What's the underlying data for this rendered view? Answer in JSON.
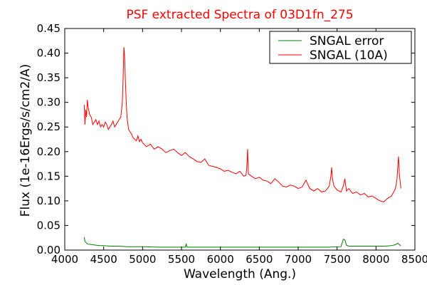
{
  "chart_data": {
    "type": "line",
    "title": "PSF extracted Spectra of 03D1fn_275",
    "xlabel": "Wavelength (Ang.)",
    "ylabel": "Flux (1e-16Ergs/s/cm2/A)",
    "xlim": [
      4000,
      8500
    ],
    "ylim": [
      0.0,
      0.45
    ],
    "xticks": [
      "4000",
      "4500",
      "5000",
      "5500",
      "6000",
      "6500",
      "7000",
      "7500",
      "8000",
      "8500"
    ],
    "yticks": [
      "0.00",
      "0.05",
      "0.10",
      "0.15",
      "0.20",
      "0.25",
      "0.30",
      "0.35",
      "0.40",
      "0.45"
    ],
    "legend_position": "top-right",
    "grid": false,
    "series": [
      {
        "name": "SNGAL error",
        "color": "#008000",
        "x": [
          4250,
          4260,
          4280,
          4300,
          4350,
          4400,
          4450,
          4500,
          4600,
          4700,
          4800,
          4900,
          5000,
          5200,
          5400,
          5550,
          5560,
          5570,
          5600,
          5800,
          6000,
          6200,
          6400,
          6600,
          6800,
          7000,
          7200,
          7400,
          7550,
          7580,
          7600,
          7620,
          7650,
          7700,
          7800,
          7900,
          8000,
          8100,
          8200,
          8250,
          8280,
          8300,
          8320
        ],
        "y": [
          0.026,
          0.018,
          0.014,
          0.012,
          0.011,
          0.01,
          0.009,
          0.009,
          0.008,
          0.008,
          0.007,
          0.007,
          0.007,
          0.006,
          0.006,
          0.006,
          0.013,
          0.006,
          0.006,
          0.006,
          0.006,
          0.006,
          0.006,
          0.006,
          0.006,
          0.006,
          0.006,
          0.006,
          0.007,
          0.022,
          0.021,
          0.01,
          0.008,
          0.008,
          0.008,
          0.008,
          0.008,
          0.008,
          0.009,
          0.011,
          0.014,
          0.011,
          0.009
        ]
      },
      {
        "name": "SNGAL (10A)",
        "color": "#ff0000",
        "x": [
          4250,
          4260,
          4270,
          4280,
          4290,
          4300,
          4320,
          4340,
          4360,
          4380,
          4400,
          4420,
          4440,
          4460,
          4480,
          4500,
          4520,
          4540,
          4560,
          4580,
          4600,
          4620,
          4640,
          4660,
          4680,
          4700,
          4720,
          4740,
          4750,
          4760,
          4770,
          4780,
          4790,
          4800,
          4820,
          4840,
          4860,
          4880,
          4900,
          4920,
          4940,
          4960,
          4980,
          5000,
          5050,
          5100,
          5150,
          5200,
          5250,
          5300,
          5350,
          5400,
          5450,
          5500,
          5550,
          5600,
          5650,
          5700,
          5750,
          5800,
          5850,
          5900,
          5950,
          6000,
          6050,
          6100,
          6150,
          6200,
          6250,
          6300,
          6330,
          6340,
          6350,
          6360,
          6400,
          6450,
          6500,
          6550,
          6600,
          6650,
          6700,
          6750,
          6800,
          6850,
          6900,
          6950,
          7000,
          7050,
          7100,
          7150,
          7200,
          7250,
          7300,
          7350,
          7400,
          7420,
          7430,
          7440,
          7460,
          7500,
          7550,
          7580,
          7600,
          7620,
          7650,
          7700,
          7750,
          7800,
          7850,
          7900,
          7950,
          8000,
          8050,
          8100,
          8150,
          8200,
          8250,
          8270,
          8280,
          8290,
          8300,
          8310,
          8320
        ],
        "y": [
          0.295,
          0.255,
          0.285,
          0.27,
          0.305,
          0.29,
          0.275,
          0.27,
          0.255,
          0.26,
          0.265,
          0.255,
          0.262,
          0.25,
          0.255,
          0.25,
          0.26,
          0.255,
          0.245,
          0.25,
          0.255,
          0.262,
          0.25,
          0.255,
          0.26,
          0.265,
          0.27,
          0.3,
          0.35,
          0.412,
          0.39,
          0.34,
          0.3,
          0.27,
          0.245,
          0.24,
          0.235,
          0.228,
          0.225,
          0.222,
          0.232,
          0.22,
          0.225,
          0.218,
          0.21,
          0.215,
          0.205,
          0.21,
          0.205,
          0.198,
          0.202,
          0.205,
          0.198,
          0.192,
          0.198,
          0.19,
          0.185,
          0.18,
          0.178,
          0.185,
          0.172,
          0.17,
          0.168,
          0.165,
          0.16,
          0.162,
          0.158,
          0.155,
          0.16,
          0.15,
          0.152,
          0.17,
          0.205,
          0.155,
          0.15,
          0.145,
          0.148,
          0.142,
          0.14,
          0.135,
          0.145,
          0.138,
          0.13,
          0.128,
          0.132,
          0.13,
          0.125,
          0.128,
          0.142,
          0.125,
          0.12,
          0.125,
          0.118,
          0.12,
          0.13,
          0.15,
          0.168,
          0.145,
          0.13,
          0.122,
          0.118,
          0.13,
          0.145,
          0.12,
          0.125,
          0.115,
          0.118,
          0.112,
          0.115,
          0.108,
          0.11,
          0.105,
          0.1,
          0.098,
          0.105,
          0.11,
          0.125,
          0.145,
          0.17,
          0.19,
          0.155,
          0.14,
          0.125
        ]
      }
    ]
  }
}
